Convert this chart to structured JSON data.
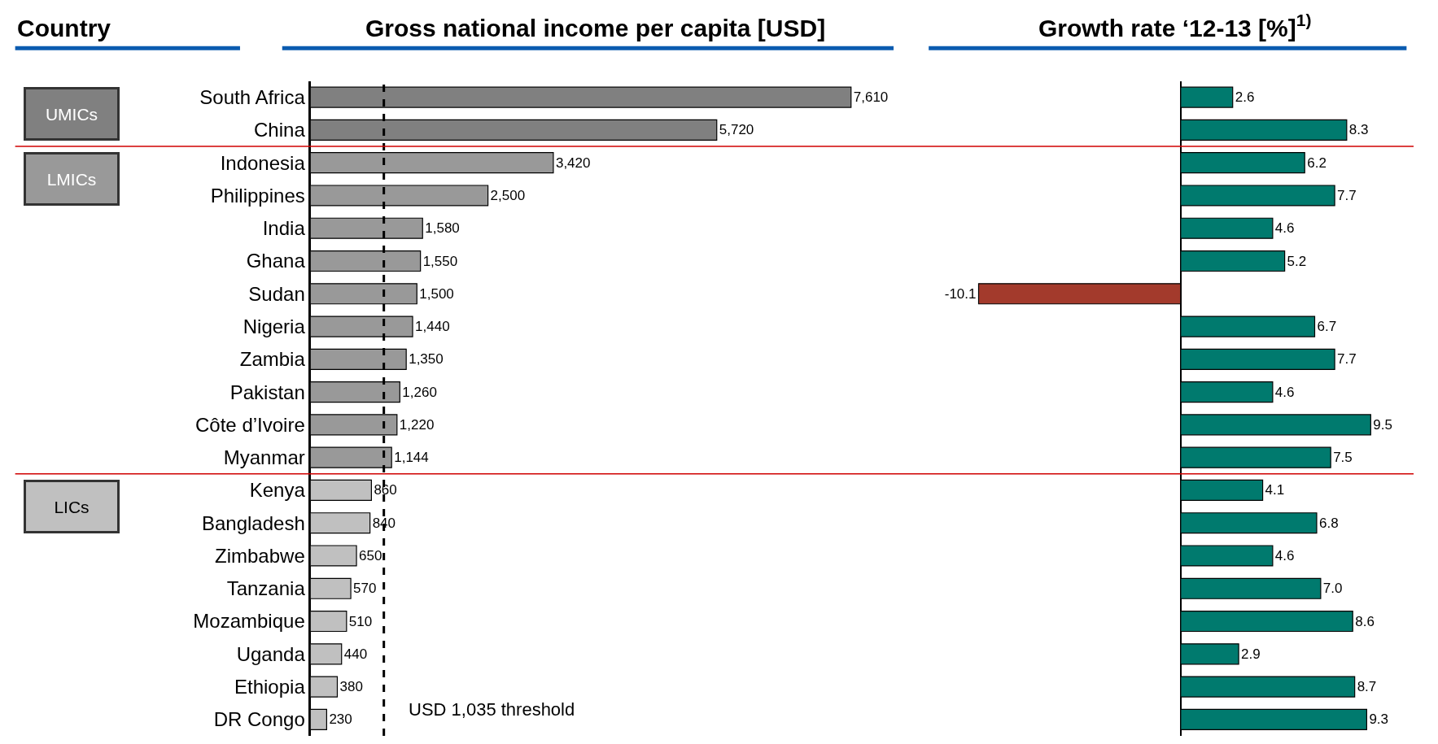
{
  "chart_data": [
    {
      "type": "bar",
      "orientation": "horizontal",
      "title": "Gross national income per capita [USD]",
      "ylabel": "Country",
      "categories": [
        "South Africa",
        "China",
        "Indonesia",
        "Philippines",
        "India",
        "Ghana",
        "Sudan",
        "Nigeria",
        "Zambia",
        "Pakistan",
        "Côte d’Ivoire",
        "Myanmar",
        "Kenya",
        "Bangladesh",
        "Zimbabwe",
        "Tanzania",
        "Mozambique",
        "Uganda",
        "Ethiopia",
        "DR Congo"
      ],
      "values": [
        7610,
        5720,
        3420,
        2500,
        1580,
        1550,
        1500,
        1440,
        1350,
        1260,
        1220,
        1144,
        860,
        840,
        650,
        570,
        510,
        440,
        380,
        230
      ],
      "colors": [
        "#808080",
        "#808080",
        "#999999",
        "#999999",
        "#999999",
        "#999999",
        "#999999",
        "#999999",
        "#999999",
        "#999999",
        "#999999",
        "#999999",
        "#c0c0c0",
        "#c0c0c0",
        "#c0c0c0",
        "#c0c0c0",
        "#c0c0c0",
        "#c0c0c0",
        "#c0c0c0",
        "#c0c0c0"
      ],
      "value_labels": [
        "7,610",
        "5,720",
        "3,420",
        "2,500",
        "1,580",
        "1,550",
        "1,500",
        "1,440",
        "1,350",
        "1,260",
        "1,220",
        "1,144",
        "860",
        "840",
        "650",
        "570",
        "510",
        "440",
        "380",
        "230"
      ],
      "ref_lines": [
        {
          "axis": "x",
          "value": 1035,
          "label": "USD 1,035 threshold",
          "color": "#000000",
          "line_style": "dashed"
        }
      ],
      "annotations": [
        "UMICs",
        "LMICs",
        "LICs"
      ]
    },
    {
      "type": "bar",
      "orientation": "horizontal",
      "title": "Growth rate ‘12-13 [%]$^{1)}$",
      "categories": [
        "South Africa",
        "China",
        "Indonesia",
        "Philippines",
        "India",
        "Ghana",
        "Sudan",
        "Nigeria",
        "Zambia",
        "Pakistan",
        "Côte d’Ivoire",
        "Myanmar",
        "Kenya",
        "Bangladesh",
        "Zimbabwe",
        "Tanzania",
        "Mozambique",
        "Uganda",
        "Ethiopia",
        "DR Congo"
      ],
      "values": [
        2.6,
        8.3,
        6.2,
        7.7,
        4.6,
        5.2,
        -10.1,
        6.7,
        7.7,
        4.6,
        9.5,
        7.5,
        4.1,
        6.8,
        4.6,
        7.0,
        8.6,
        2.9,
        8.7,
        9.3
      ],
      "colors": [
        "#007a6e",
        "#007a6e",
        "#007a6e",
        "#007a6e",
        "#007a6e",
        "#007a6e",
        "#a33a2c",
        "#007a6e",
        "#007a6e",
        "#007a6e",
        "#007a6e",
        "#007a6e",
        "#007a6e",
        "#007a6e",
        "#007a6e",
        "#007a6e",
        "#007a6e",
        "#007a6e",
        "#007a6e",
        "#007a6e"
      ],
      "value_labels": [
        "2.6",
        "8.3",
        "6.2",
        "7.7",
        "4.6",
        "5.2",
        "-10.1",
        "6.7",
        "7.7",
        "4.6",
        "9.5",
        "7.5",
        "4.1",
        "6.8",
        "4.6",
        "7.0",
        "8.6",
        "2.9",
        "8.7",
        "9.3"
      ],
      "tick_labels": false
    }
  ]
}
